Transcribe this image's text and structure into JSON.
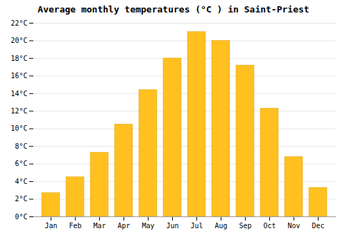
{
  "chart_data": {
    "type": "bar",
    "title": "Average monthly temperatures (°C ) in Saint-Priest",
    "categories": [
      "Jan",
      "Feb",
      "Mar",
      "Apr",
      "May",
      "Jun",
      "Jul",
      "Aug",
      "Sep",
      "Oct",
      "Nov",
      "Dec"
    ],
    "values": [
      2.7,
      4.5,
      7.3,
      10.5,
      14.4,
      18.0,
      21.0,
      20.0,
      17.2,
      12.3,
      6.8,
      3.3
    ],
    "color": "#FFC020",
    "ylim": [
      0,
      22
    ],
    "yticks": [
      {
        "value": 0,
        "label": "0°C"
      },
      {
        "value": 2,
        "label": "2°C"
      },
      {
        "value": 4,
        "label": "4°C"
      },
      {
        "value": 6,
        "label": "6°C"
      },
      {
        "value": 8,
        "label": "8°C"
      },
      {
        "value": 10,
        "label": "10°C"
      },
      {
        "value": 12,
        "label": "12°C"
      },
      {
        "value": 14,
        "label": "14°C"
      },
      {
        "value": 16,
        "label": "16°C"
      },
      {
        "value": 18,
        "label": "18°C"
      },
      {
        "value": 20,
        "label": "20°C"
      },
      {
        "value": 22,
        "label": "22°C"
      }
    ],
    "grid": true
  }
}
